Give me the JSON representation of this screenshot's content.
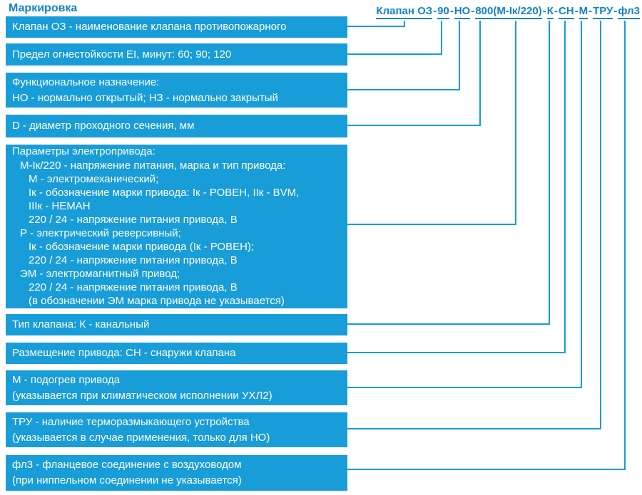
{
  "title": "Маркировка",
  "formula": {
    "segments": [
      "Клапан ОЗ",
      "90",
      "НО",
      "800(М-Iк/220)",
      "К",
      "СН",
      "М",
      "ТРУ",
      "фл3"
    ],
    "separator": "-"
  },
  "boxes": [
    {
      "id": "valve-name",
      "lines": [
        "Клапан ОЗ - наименование клапана противопожарного"
      ]
    },
    {
      "id": "fire-resistance",
      "lines": [
        "Предел огнестойкости EI, минут: 60; 90; 120"
      ]
    },
    {
      "id": "functional-purpose",
      "lines": [
        "Функциональное назначение:",
        "НО - нормально открытый; НЗ - нормально закрытый"
      ]
    },
    {
      "id": "diameter",
      "lines": [
        "D - диаметр проходного сечения, мм"
      ]
    },
    {
      "id": "actuator-parameters",
      "lines": [
        {
          "indent": 0,
          "text": "Параметры электропривода:"
        },
        {
          "indent": 1,
          "text": "М-Iк/220 - напряжение питания, марка и тип привода:"
        },
        {
          "indent": 2,
          "text": "М - электромеханический;"
        },
        {
          "indent": 2,
          "text": "Iк - обозначение марки привода: Iк - РОВЕН, IIк - BVM,"
        },
        {
          "indent": 2,
          "text": "IIIк - НЕМАН"
        },
        {
          "indent": 2,
          "text": "220 / 24 - напряжение питания привода, В"
        },
        {
          "indent": 1,
          "text": "Р - электрический реверсивный;"
        },
        {
          "indent": 2,
          "text": "Iк - обозначение марки привода (Iк - РОВЕН);"
        },
        {
          "indent": 2,
          "text": "220 / 24 - напряжение питания привода, В"
        },
        {
          "indent": 1,
          "text": "ЭМ - электромагнитный привод;"
        },
        {
          "indent": 2,
          "text": "220 / 24 - напряжение питания привода, В"
        },
        {
          "indent": 2,
          "text": "(в обозначении ЭМ марка привода не указывается)"
        }
      ]
    },
    {
      "id": "valve-type",
      "lines": [
        "Тип клапана: К - канальный"
      ]
    },
    {
      "id": "actuator-placement",
      "lines": [
        "Размещение привода: СН - снаружи клапана"
      ]
    },
    {
      "id": "actuator-heating",
      "lines": [
        "М - подогрев привода",
        "(указывается при климатическом исполнении УХЛ2)"
      ]
    },
    {
      "id": "thermal-release-device",
      "lines": [
        "ТРУ - наличие терморазмыкающего устройства",
        "(указывается в случае применения, только для НО)"
      ]
    },
    {
      "id": "flange-connection",
      "lines": [
        "фл3 - фланцевое соединение с воздуховодом",
        "(при ниппельном соединении не указывается)"
      ]
    }
  ],
  "colors": {
    "box_fill": "#189DD9",
    "box_text": "#FFFFFF",
    "accent_text": "#1184C9",
    "line": "#189DD9"
  }
}
